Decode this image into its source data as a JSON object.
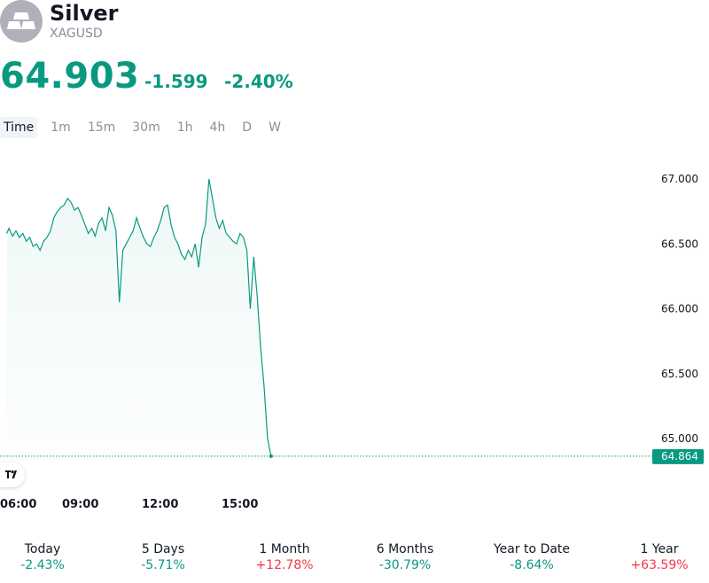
{
  "header": {
    "title": "Silver",
    "symbol": "XAGUSD",
    "logo_icon": "silver-bars-icon"
  },
  "quote": {
    "price": "64.903",
    "change": "-1.599",
    "change_percent": "-2.40%",
    "color": "#089981"
  },
  "timeframes": [
    "Time",
    "1m",
    "15m",
    "30m",
    "1h",
    "4h",
    "D",
    "W"
  ],
  "active_timeframe": "Time",
  "chart_data": {
    "type": "area",
    "x_tick_labels": [
      "06:00",
      "09:00",
      "12:00",
      "15:00"
    ],
    "y_tick_labels": [
      "67.000",
      "66.500",
      "66.000",
      "65.500",
      "65.000"
    ],
    "ylim": [
      64.8,
      67.15
    ],
    "last_price_label": "64.864",
    "last_price": 64.864,
    "line_color": "#089981",
    "grid": false,
    "x": [
      "05:33",
      "05:40",
      "05:50",
      "06:00",
      "06:10",
      "06:20",
      "06:30",
      "06:40",
      "06:50",
      "07:00",
      "07:10",
      "07:20",
      "07:30",
      "07:40",
      "07:50",
      "08:00",
      "08:10",
      "08:20",
      "08:30",
      "08:40",
      "08:50",
      "09:00",
      "09:10",
      "09:20",
      "09:30",
      "09:40",
      "09:50",
      "10:00",
      "10:10",
      "10:20",
      "10:30",
      "10:40",
      "10:50",
      "11:00",
      "11:10",
      "11:20",
      "11:30",
      "11:40",
      "11:50",
      "12:00",
      "12:10",
      "12:20",
      "12:30",
      "12:40",
      "12:50",
      "13:00",
      "13:10",
      "13:20",
      "13:30",
      "13:40",
      "13:50",
      "14:00",
      "14:10",
      "14:20",
      "14:30",
      "14:40",
      "14:50",
      "15:00",
      "15:10",
      "15:20",
      "15:30",
      "15:40",
      "15:50",
      "16:00",
      "16:10",
      "16:20",
      "16:30",
      "16:40",
      "16:50",
      "17:00",
      "17:10",
      "17:20",
      "17:30",
      "17:40",
      "17:50",
      "18:00",
      "18:10",
      "18:20"
    ],
    "values": [
      66.58,
      66.62,
      66.56,
      66.6,
      66.55,
      66.58,
      66.52,
      66.55,
      66.48,
      66.5,
      66.45,
      66.52,
      66.55,
      66.6,
      66.7,
      66.75,
      66.78,
      66.8,
      66.85,
      66.82,
      66.76,
      66.78,
      66.72,
      66.65,
      66.58,
      66.62,
      66.56,
      66.66,
      66.7,
      66.6,
      66.78,
      66.72,
      66.6,
      66.05,
      66.45,
      66.5,
      66.55,
      66.6,
      66.7,
      66.62,
      66.55,
      66.5,
      66.48,
      66.55,
      66.6,
      66.68,
      66.78,
      66.8,
      66.65,
      66.55,
      66.5,
      66.42,
      66.38,
      66.45,
      66.4,
      66.5,
      66.32,
      66.55,
      66.65,
      67.0,
      66.85,
      66.7,
      66.62,
      66.68,
      66.58,
      66.55,
      66.52,
      66.5,
      66.58,
      66.55,
      66.45,
      66.0,
      66.4,
      66.1,
      65.7,
      65.4,
      65.0,
      64.864
    ]
  },
  "performance": [
    {
      "label": "Today",
      "value": "-2.43%",
      "sign": "neg"
    },
    {
      "label": "5 Days",
      "value": "-5.71%",
      "sign": "neg"
    },
    {
      "label": "1 Month",
      "value": "+12.78%",
      "sign": "pos"
    },
    {
      "label": "6 Months",
      "value": "-30.79%",
      "sign": "neg"
    },
    {
      "label": "Year to Date",
      "value": "-8.64%",
      "sign": "neg"
    },
    {
      "label": "1 Year",
      "value": "+63.59%",
      "sign": "pos"
    }
  ]
}
